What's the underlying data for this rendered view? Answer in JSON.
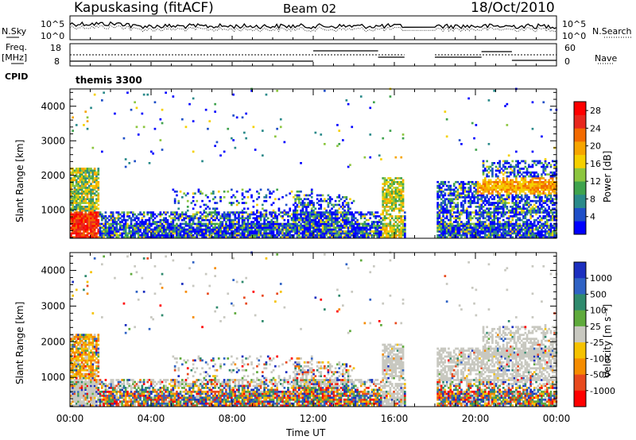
{
  "header": {
    "station": "Kapuskasing (fitACF)",
    "beam": "Beam 02",
    "date": "18/Oct/2010"
  },
  "panels": {
    "nsky_label": "N.Sky",
    "nsky_ticks": [
      "10^5",
      "10^0"
    ],
    "nsearch_label": "N.Search",
    "nsearch_ticks": [
      "10^5",
      "10^0"
    ],
    "freq_label": "Freq.",
    "freq_unit": "[MHz]",
    "freq_ticks": [
      "18",
      "8"
    ],
    "nave_label": "Nave",
    "nave_ticks": [
      "60",
      "0"
    ],
    "cpid_label": "CPID",
    "cpid_value": "themis 3300"
  },
  "chart_data": [
    {
      "type": "heatmap",
      "title": "",
      "xlabel": "",
      "ylabel": "Slant Range [km]",
      "xlim": [
        "00:00",
        "24:00"
      ],
      "ylim": [
        180,
        4500
      ],
      "yticks": [
        1000,
        2000,
        3000,
        4000
      ],
      "colorbar": {
        "label": "Power [dB]",
        "ticks": [
          4,
          8,
          12,
          16,
          20,
          24,
          28
        ],
        "range": [
          0,
          30
        ],
        "colors": [
          "#0000ff",
          "#1f4fc8",
          "#2a8a8a",
          "#3fa34d",
          "#8cc63f",
          "#f5d000",
          "#f7a500",
          "#f26a00",
          "#e8281e",
          "#ff0000"
        ]
      },
      "data_gaps_ut": [
        [
          16.5,
          18.0
        ]
      ]
    },
    {
      "type": "heatmap",
      "title": "",
      "xlabel": "Time UT",
      "ylabel": "Slant Range [km]",
      "xlim": [
        "00:00",
        "24:00"
      ],
      "ylim": [
        180,
        4500
      ],
      "yticks": [
        1000,
        2000,
        3000,
        4000
      ],
      "xticks": [
        "00:00",
        "04:00",
        "08:00",
        "12:00",
        "16:00",
        "20:00",
        "00:00"
      ],
      "colorbar": {
        "label": "Velocity [m s⁻¹]",
        "ticks": [
          1000,
          500,
          100,
          25,
          -25,
          -100,
          -500,
          -1000
        ],
        "colors": [
          "#1c2fbf",
          "#2f62c4",
          "#2f8a6d",
          "#5faa3c",
          "#c8c8c0",
          "#f5c200",
          "#f58c00",
          "#e84a1e",
          "#ff0000"
        ]
      },
      "data_gaps_ut": [
        [
          16.5,
          18.0
        ]
      ]
    }
  ]
}
